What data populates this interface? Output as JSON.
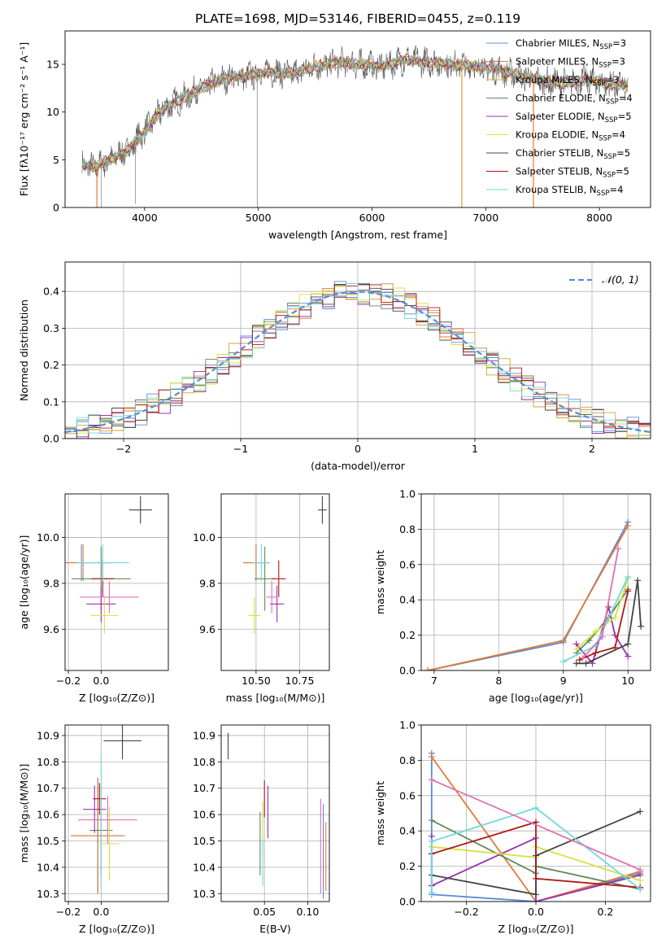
{
  "figure": {
    "title": "PLATE=1698, MJD=53146, FIBERID=0455, z=0.119"
  },
  "series": [
    {
      "name": "Chabrier MILES, N_SSP=3",
      "label_main": "Chabrier MILES, N",
      "label_sub": "SSP",
      "label_end": "=3",
      "color": "#5b8bd6"
    },
    {
      "name": "Salpeter MILES, N_SSP=3",
      "label_main": "Salpeter MILES, N",
      "label_sub": "SSP",
      "label_end": "=3",
      "color": "#e07b39"
    },
    {
      "name": "Kroupa MILES, N_SSP=3",
      "label_main": "Kroupa MILES, N",
      "label_sub": "SSP",
      "label_end": "=3",
      "color": "#d4a030"
    },
    {
      "name": "Chabrier ELODIE, N_SSP=4",
      "label_main": "Chabrier ELODIE, N",
      "label_sub": "SSP",
      "label_end": "=4",
      "color": "#5e8a5e"
    },
    {
      "name": "Salpeter ELODIE, N_SSP=5",
      "label_main": "Salpeter ELODIE, N",
      "label_sub": "SSP",
      "label_end": "=5",
      "color": "#9b30b0"
    },
    {
      "name": "Kroupa ELODIE, N_SSP=4",
      "label_main": "Kroupa ELODIE, N",
      "label_sub": "SSP",
      "label_end": "=4",
      "color": "#d8e040"
    },
    {
      "name": "Chabrier STELIB, N_SSP=5",
      "label_main": "Chabrier STELIB, N",
      "label_sub": "SSP",
      "label_end": "=5",
      "color": "#444444"
    },
    {
      "name": "Salpeter STELIB, N_SSP=5",
      "label_main": "Salpeter STELIB, N",
      "label_sub": "SSP",
      "label_end": "=5",
      "color": "#b01818"
    },
    {
      "name": "Kroupa STELIB, N_SSP=4",
      "label_main": "Kroupa STELIB, N",
      "label_sub": "SSP",
      "label_end": "=4",
      "color": "#70d8e0"
    }
  ],
  "extra_colors": {
    "pink": "#e070b0",
    "normal_curve": "#5b8bd6"
  },
  "chart_data": [
    {
      "id": "spectrum",
      "type": "line",
      "xlabel": "wavelength [Angstrom, rest frame]",
      "ylabel": "Flux [fλ10⁻¹⁷ erg cm⁻² s⁻¹ A⁻¹]",
      "xlim": [
        3300,
        8450
      ],
      "ylim": [
        0,
        18.5
      ],
      "xticks": [
        4000,
        5000,
        6000,
        7000,
        8000
      ],
      "yticks": [
        0,
        5,
        10,
        15
      ],
      "grid": false,
      "legend": "upper right",
      "x": [
        3450,
        3550,
        3700,
        3850,
        4000,
        4150,
        4300,
        4500,
        4700,
        4900,
        5100,
        5300,
        5500,
        5700,
        5900,
        6100,
        6300,
        6500,
        6700,
        6900,
        7100,
        7300,
        7500,
        7700,
        7900,
        8150
      ],
      "y": [
        4.4,
        4.2,
        5.0,
        6.0,
        8.0,
        10.2,
        11.2,
        12.5,
        13.5,
        13.8,
        14.2,
        14.0,
        14.8,
        15.2,
        15.0,
        14.8,
        15.5,
        15.2,
        15.0,
        14.8,
        14.5,
        13.8,
        13.2,
        13.0,
        13.4,
        12.8
      ]
    },
    {
      "id": "residuals",
      "type": "line",
      "xlabel": "(data-model)/error",
      "ylabel": "Normed distribution",
      "xlim": [
        -2.5,
        2.5
      ],
      "ylim": [
        0,
        0.48
      ],
      "xticks": [
        -2,
        -1,
        0,
        1,
        2
      ],
      "yticks": [
        0.0,
        0.1,
        0.2,
        0.3,
        0.4
      ],
      "grid": true,
      "legend": "upper right",
      "legend_label": "𝒩(0, 1)",
      "curve": "normal",
      "mean": 0,
      "sigma": 1
    },
    {
      "id": "age-vs-Z",
      "type": "scatter",
      "xlabel": "Z [log₁₀(Z/Z⊙)]",
      "ylabel": "age  [log₁₀(age/yr)]",
      "xlim": [
        -0.22,
        0.41
      ],
      "ylim": [
        9.42,
        10.19
      ],
      "xticks": [
        -0.2,
        0.0
      ],
      "yticks": [
        9.6,
        9.8,
        10.0
      ],
      "grid": true,
      "error_points": [
        {
          "x": -0.12,
          "y": 9.89,
          "xerr": 0.34,
          "yerr": 0.08,
          "color_index": 0
        },
        {
          "x": -0.11,
          "y": 9.89,
          "xerr": 0.34,
          "yerr": 0.08,
          "color_index": 1
        },
        {
          "x": 0.0,
          "y": 9.82,
          "xerr": 0.36,
          "yerr": 0.14,
          "color_index": 3
        },
        {
          "x": 0.0,
          "y": 9.71,
          "xerr": 0.18,
          "yerr": 0.08,
          "color_index": 4
        },
        {
          "x": 0.02,
          "y": 9.66,
          "xerr": 0.17,
          "yerr": 0.08,
          "color_index": 5
        },
        {
          "x": 0.01,
          "y": 9.82,
          "xerr": 0.14,
          "yerr": 0.08,
          "color_index": 7
        },
        {
          "x": 0.01,
          "y": 9.89,
          "xerr": 0.32,
          "yerr": 0.08,
          "color_index": 8
        },
        {
          "x": 0.05,
          "y": 9.74,
          "xerr": 0.36,
          "yerr": 0.07,
          "color_index": 6,
          "color_override": "pink"
        },
        {
          "x": 0.24,
          "y": 10.12,
          "xerr": 0.14,
          "yerr": 0.06,
          "color_index": 6
        }
      ]
    },
    {
      "id": "age-vs-mass",
      "type": "scatter",
      "xlabel": "mass [log₁₀(M/M⊙)]",
      "ylabel": "",
      "xlim": [
        10.3,
        10.92
      ],
      "ylim": [
        9.42,
        10.19
      ],
      "xticks": [
        10.5,
        10.75
      ],
      "yticks": [
        9.6,
        9.8,
        10.0
      ],
      "grid": true,
      "error_points": [
        {
          "x": 10.5,
          "y": 9.89,
          "xerr": 0.14,
          "yerr": 0.08,
          "color_index": 0
        },
        {
          "x": 10.5,
          "y": 9.89,
          "xerr": 0.15,
          "yerr": 0.08,
          "color_index": 1
        },
        {
          "x": 10.55,
          "y": 9.82,
          "xerr": 0.12,
          "yerr": 0.14,
          "color_index": 3
        },
        {
          "x": 10.62,
          "y": 9.71,
          "xerr": 0.08,
          "yerr": 0.08,
          "color_index": 4
        },
        {
          "x": 10.49,
          "y": 9.66,
          "xerr": 0.07,
          "yerr": 0.08,
          "color_index": 5
        },
        {
          "x": 10.63,
          "y": 9.82,
          "xerr": 0.08,
          "yerr": 0.08,
          "color_index": 7
        },
        {
          "x": 10.53,
          "y": 9.89,
          "xerr": 0.1,
          "yerr": 0.08,
          "color_index": 8
        },
        {
          "x": 10.59,
          "y": 9.74,
          "xerr": 0.06,
          "yerr": 0.07,
          "color_index": 6,
          "color_override": "pink"
        },
        {
          "x": 10.88,
          "y": 10.12,
          "xerr": 0.05,
          "yerr": 0.06,
          "color_index": 6
        }
      ]
    },
    {
      "id": "mass-weight-vs-age",
      "type": "line",
      "xlabel": "age  [log₁₀(age/yr)]",
      "ylabel": "mass weight",
      "xlim": [
        6.8,
        10.35
      ],
      "ylim": [
        0,
        1.0
      ],
      "xticks": [
        7,
        8,
        9,
        10
      ],
      "yticks": [
        0.0,
        0.2,
        0.4,
        0.6,
        0.8,
        1.0
      ],
      "grid": true,
      "lines": [
        {
          "color_index": 0,
          "x": [
            6.9,
            9.0,
            10.0
          ],
          "y": [
            0.0,
            0.16,
            0.84
          ]
        },
        {
          "color_index": 1,
          "x": [
            6.9,
            9.0,
            10.0
          ],
          "y": [
            0.0,
            0.17,
            0.82
          ]
        },
        {
          "color_index": 3,
          "x": [
            9.2,
            9.4,
            9.7,
            10.0
          ],
          "y": [
            0.1,
            0.17,
            0.3,
            0.46
          ]
        },
        {
          "color_index": 4,
          "x": [
            9.2,
            9.45,
            9.7,
            9.8,
            10.0
          ],
          "y": [
            0.15,
            0.04,
            0.36,
            0.2,
            0.08
          ]
        },
        {
          "color_index": 5,
          "x": [
            9.2,
            9.5,
            9.8,
            10.0
          ],
          "y": [
            0.12,
            0.22,
            0.3,
            0.52
          ]
        },
        {
          "color_index": 6,
          "x": [
            9.2,
            9.35,
            10.0,
            10.15,
            10.2
          ],
          "y": [
            0.04,
            0.04,
            0.15,
            0.51,
            0.25
          ]
        },
        {
          "color_index": 7,
          "x": [
            9.25,
            9.5,
            9.8,
            10.0
          ],
          "y": [
            0.06,
            0.1,
            0.13,
            0.45
          ]
        },
        {
          "color_index": 8,
          "x": [
            9.0,
            9.5,
            10.0
          ],
          "y": [
            0.05,
            0.14,
            0.53
          ]
        },
        {
          "color_index": 6,
          "color_override": "pink",
          "x": [
            9.3,
            9.6,
            9.85
          ],
          "y": [
            0.07,
            0.19,
            0.69
          ]
        }
      ]
    },
    {
      "id": "mass-vs-Z",
      "type": "scatter",
      "xlabel": "Z [log₁₀(Z/Z⊙)]",
      "ylabel": "mass [log₁₀(M/M⊙)]",
      "xlim": [
        -0.22,
        0.41
      ],
      "ylim": [
        10.27,
        10.94
      ],
      "xticks": [
        -0.2,
        0.0
      ],
      "yticks": [
        10.3,
        10.4,
        10.5,
        10.6,
        10.7,
        10.8,
        10.9
      ],
      "grid": true,
      "error_points": [
        {
          "x": -0.02,
          "y": 10.52,
          "xerr": 0.33,
          "yerr": 0.22,
          "color_index": 0
        },
        {
          "x": -0.02,
          "y": 10.52,
          "xerr": 0.33,
          "yerr": 0.22,
          "color_index": 1
        },
        {
          "x": 0.0,
          "y": 10.54,
          "xerr": 0.14,
          "yerr": 0.17,
          "color_index": 3
        },
        {
          "x": -0.04,
          "y": 10.62,
          "xerr": 0.14,
          "yerr": 0.09,
          "color_index": 4
        },
        {
          "x": 0.05,
          "y": 10.49,
          "xerr": 0.12,
          "yerr": 0.14,
          "color_index": 5
        },
        {
          "x": -0.01,
          "y": 10.66,
          "xerr": 0.08,
          "yerr": 0.06,
          "color_index": 7
        },
        {
          "x": 0.0,
          "y": 10.58,
          "xerr": 0.1,
          "yerr": 0.25,
          "color_index": 8
        },
        {
          "x": 0.04,
          "y": 10.58,
          "xerr": 0.36,
          "yerr": 0.09,
          "color_index": 6,
          "color_override": "pink"
        },
        {
          "x": 0.13,
          "y": 10.88,
          "xerr": 0.23,
          "yerr": 0.07,
          "color_index": 6
        }
      ]
    },
    {
      "id": "mass-vs-ebv",
      "type": "scatter",
      "xlabel": "E(B-V)",
      "ylabel": "",
      "xlim": [
        0.0,
        0.125
      ],
      "ylim": [
        10.27,
        10.94
      ],
      "xticks": [
        0.05,
        0.1
      ],
      "yticks": [
        10.3,
        10.4,
        10.5,
        10.6,
        10.7,
        10.8,
        10.9
      ],
      "grid": true,
      "error_points": [
        {
          "x": 0.118,
          "y": 10.46,
          "xerr": 0,
          "yerr": 0.18,
          "color_index": 0
        },
        {
          "x": 0.121,
          "y": 10.44,
          "xerr": 0,
          "yerr": 0.13,
          "color_index": 1
        },
        {
          "x": 0.045,
          "y": 10.49,
          "xerr": 0,
          "yerr": 0.12,
          "color_index": 3
        },
        {
          "x": 0.054,
          "y": 10.61,
          "xerr": 0,
          "yerr": 0.1,
          "color_index": 4
        },
        {
          "x": 0.048,
          "y": 10.55,
          "xerr": 0,
          "yerr": 0.1,
          "color_index": 5
        },
        {
          "x": 0.05,
          "y": 10.66,
          "xerr": 0,
          "yerr": 0.07,
          "color_index": 7
        },
        {
          "x": 0.048,
          "y": 10.42,
          "xerr": 0,
          "yerr": 0.09,
          "color_index": 8
        },
        {
          "x": 0.115,
          "y": 10.48,
          "xerr": 0,
          "yerr": 0.18,
          "color_index": 6,
          "color_override": "pink"
        },
        {
          "x": 0.008,
          "y": 10.86,
          "xerr": 0,
          "yerr": 0.05,
          "color_index": 6
        }
      ]
    },
    {
      "id": "mass-weight-vs-Z",
      "type": "line",
      "xlabel": "Z [log₁₀(Z/Z⊙)]",
      "ylabel": "mass weight",
      "xlim": [
        -0.33,
        0.33
      ],
      "ylim": [
        0,
        1.0
      ],
      "xticks": [
        -0.2,
        0.0,
        0.2
      ],
      "yticks": [
        0.0,
        0.2,
        0.4,
        0.6,
        0.8,
        1.0
      ],
      "grid": true,
      "lines": [
        {
          "color_index": 0,
          "x": [
            -0.3,
            -0.3,
            0.0,
            0.0,
            0.3
          ],
          "y": [
            0.84,
            0.04,
            0.0,
            0.0,
            0.16
          ]
        },
        {
          "color_index": 1,
          "x": [
            -0.3,
            0.0,
            0.3
          ],
          "y": [
            0.82,
            0.0,
            0.17
          ]
        },
        {
          "color_index": 3,
          "x": [
            -0.3,
            0.0,
            0.0,
            0.3
          ],
          "y": [
            0.46,
            0.16,
            0.2,
            0.07
          ]
        },
        {
          "color_index": 4,
          "x": [
            -0.3,
            -0.3,
            0.0,
            0.0,
            0.3
          ],
          "y": [
            0.37,
            0.09,
            0.36,
            0.0,
            0.15
          ]
        },
        {
          "color_index": 5,
          "x": [
            -0.3,
            0.0,
            0.0,
            0.3
          ],
          "y": [
            0.31,
            0.25,
            0.31,
            0.12
          ]
        },
        {
          "color_index": 6,
          "x": [
            -0.3,
            0.0,
            0.0,
            0.3
          ],
          "y": [
            0.15,
            0.04,
            0.26,
            0.51
          ]
        },
        {
          "color_index": 7,
          "x": [
            -0.3,
            0.0,
            0.0,
            0.3
          ],
          "y": [
            0.27,
            0.45,
            0.13,
            0.08
          ]
        },
        {
          "color_index": 8,
          "x": [
            -0.3,
            -0.3,
            0.0,
            0.3
          ],
          "y": [
            0.05,
            0.34,
            0.53,
            0.07
          ]
        },
        {
          "color_index": 6,
          "color_override": "pink",
          "x": [
            -0.3,
            0.3
          ],
          "y": [
            0.69,
            0.18
          ]
        }
      ]
    }
  ]
}
